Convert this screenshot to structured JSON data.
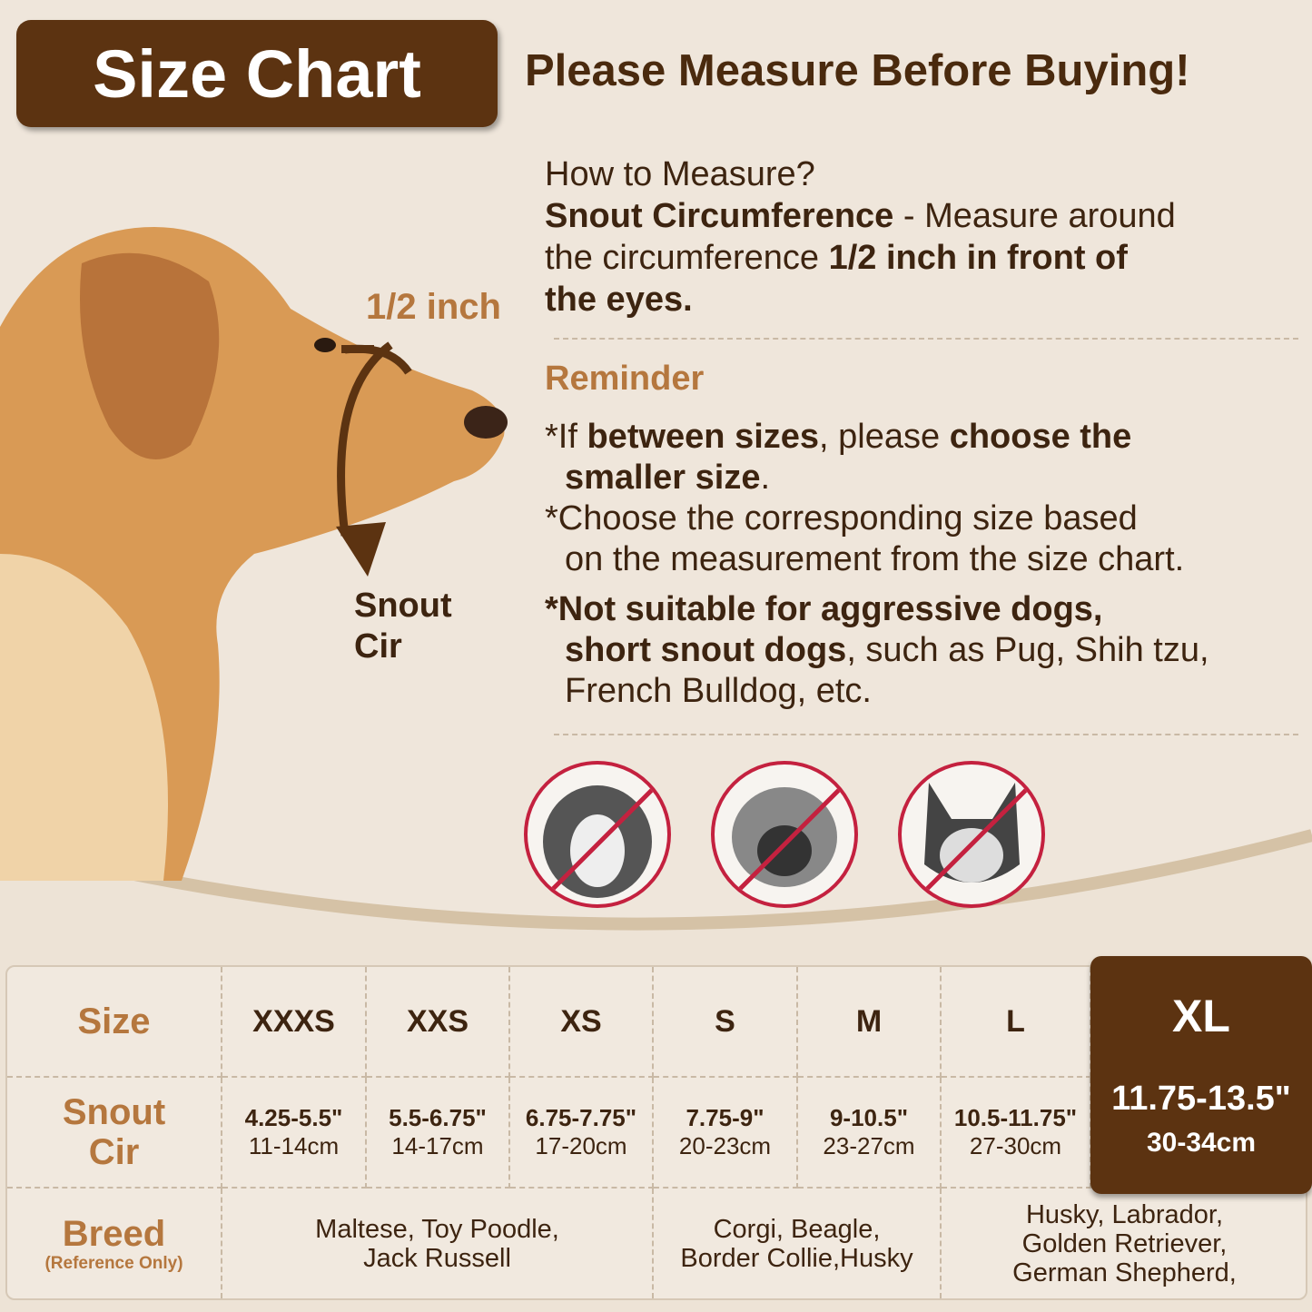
{
  "header": {
    "title": "Size Chart",
    "headline": "Please Measure Before Buying!"
  },
  "how_to": {
    "question": "How to Measure?",
    "term": "Snout Circumference",
    "text1": " - Measure around",
    "text2": "the circumference ",
    "bold2": "1/2 inch in front of",
    "bold3": "the eyes."
  },
  "diagram": {
    "half_inch_label": "1/2 inch",
    "snout_label_1": "Snout",
    "snout_label_2": "Cir"
  },
  "reminder": {
    "title": "Reminder",
    "r1_a": "*If ",
    "r1_b": "between sizes",
    "r1_c": ", please ",
    "r1_d": "choose the",
    "r1_e": "smaller size",
    "r1_f": ".",
    "r2_a": "*Choose the corresponding size based",
    "r2_b": "on the measurement from the size chart.",
    "r3_a": "*Not suitable for aggressive dogs,",
    "r3_b": "short snout dogs",
    "r3_c": ", such as Pug, Shih tzu,",
    "r3_d": "French Bulldog, etc."
  },
  "not_suitable": [
    "shih-tzu",
    "pug",
    "french-bulldog"
  ],
  "colors": {
    "brown": "#5c3311",
    "accent": "#b5773e",
    "prohibit": "#c4213f",
    "background": "#efe6db"
  },
  "table": {
    "row_headers": {
      "size": "Size",
      "snout_1": "Snout",
      "snout_2": "Cir",
      "breed": "Breed",
      "breed_note": "(Reference Only)"
    },
    "sizes": [
      {
        "size": "XXXS",
        "inch": "4.25-5.5\"",
        "cm": "11-14cm"
      },
      {
        "size": "XXS",
        "inch": "5.5-6.75\"",
        "cm": "14-17cm"
      },
      {
        "size": "XS",
        "inch": "6.75-7.75\"",
        "cm": "17-20cm"
      },
      {
        "size": "S",
        "inch": "7.75-9\"",
        "cm": "20-23cm"
      },
      {
        "size": "M",
        "inch": "9-10.5\"",
        "cm": "23-27cm"
      },
      {
        "size": "L",
        "inch": "10.5-11.75\"",
        "cm": "27-30cm"
      },
      {
        "size": "XL",
        "inch": "11.75-13.5\"",
        "cm": "30-34cm",
        "highlighted": true
      }
    ],
    "breeds": [
      {
        "l1": "Maltese, Toy Poodle,",
        "l2": "Jack Russell"
      },
      {
        "l1": "Corgi, Beagle,",
        "l2": "Border Collie,Husky"
      },
      {
        "l1": "Husky, Labrador,",
        "l2": "Golden Retriever,",
        "l3": "German Shepherd,"
      }
    ]
  }
}
